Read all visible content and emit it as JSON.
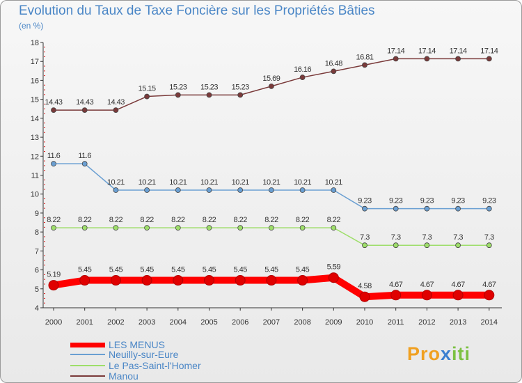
{
  "chart_data": {
    "type": "line",
    "title": "Evolution du Taux de Taxe Foncière sur les Propriétés Bâties",
    "unit_label": "(en %)",
    "x": [
      "2000",
      "2001",
      "2002",
      "2003",
      "2004",
      "2005",
      "2006",
      "2007",
      "2008",
      "2009",
      "2010",
      "2011",
      "2012",
      "2013",
      "2014"
    ],
    "ylim": [
      4,
      18
    ],
    "yticks": [
      "4",
      "5",
      "6",
      "7",
      "8",
      "9",
      "10",
      "11",
      "12",
      "13",
      "14",
      "15",
      "16",
      "17",
      "18"
    ],
    "grid": false,
    "series": [
      {
        "name": "LES MENUS",
        "color": "#ff0000",
        "values": [
          5.19,
          5.45,
          5.45,
          5.45,
          5.45,
          5.45,
          5.45,
          5.45,
          5.45,
          5.59,
          4.58,
          4.67,
          4.67,
          4.67,
          4.67
        ],
        "labels": [
          "5.19",
          "5.45",
          "5.45",
          "5.45",
          "5.45",
          "5.45",
          "5.45",
          "5.45",
          "5.45",
          "5.59",
          "4.58",
          "4.67",
          "4.67",
          "4.67",
          "4.67"
        ]
      },
      {
        "name": "Neuilly-sur-Eure",
        "color": "#6a9fd2",
        "values": [
          11.6,
          11.6,
          10.21,
          10.21,
          10.21,
          10.21,
          10.21,
          10.21,
          10.21,
          10.21,
          9.23,
          9.23,
          9.23,
          9.23,
          9.23
        ],
        "labels": [
          "11.6",
          "11.6",
          "10.21",
          "10.21",
          "10.21",
          "10.21",
          "10.21",
          "10.21",
          "10.21",
          "10.21",
          "9.23",
          "9.23",
          "9.23",
          "9.23",
          "9.23"
        ]
      },
      {
        "name": "Le Pas-Saint-l'Homer",
        "color": "#9ede6a",
        "values": [
          8.22,
          8.22,
          8.22,
          8.22,
          8.22,
          8.22,
          8.22,
          8.22,
          8.22,
          8.22,
          7.3,
          7.3,
          7.3,
          7.3,
          7.3
        ],
        "labels": [
          "8.22",
          "8.22",
          "8.22",
          "8.22",
          "8.22",
          "8.22",
          "8.22",
          "8.22",
          "8.22",
          "8.22",
          "7.3",
          "7.3",
          "7.3",
          "7.3",
          "7.3"
        ]
      },
      {
        "name": "Manou",
        "color": "#7a3a3a",
        "values": [
          14.43,
          14.43,
          14.43,
          15.15,
          15.23,
          15.23,
          15.23,
          15.69,
          16.16,
          16.48,
          16.81,
          17.14,
          17.14,
          17.14,
          17.14
        ],
        "labels": [
          "14.43",
          "14.43",
          "14.43",
          "15.15",
          "15.23",
          "15.23",
          "15.23",
          "15.69",
          "16.16",
          "16.48",
          "16.81",
          "17.14",
          "17.14",
          "17.14",
          "17.14"
        ]
      }
    ]
  },
  "logo": {
    "parts": [
      "Pro",
      "x",
      "iti"
    ],
    "colors": [
      "#f0a020",
      "#3b7fd0",
      "#7cc142"
    ]
  }
}
